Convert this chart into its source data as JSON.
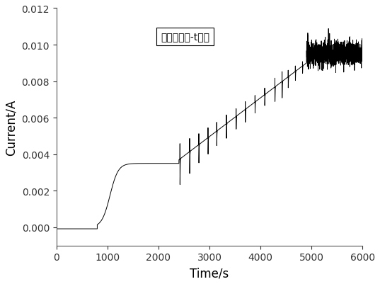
{
  "title": "",
  "xlabel": "Time/s",
  "ylabel": "Current/A",
  "xlim": [
    0,
    6000
  ],
  "ylim": [
    -0.001,
    0.012
  ],
  "xticks": [
    0,
    1000,
    2000,
    3000,
    4000,
    5000,
    6000
  ],
  "yticks": [
    0.0,
    0.002,
    0.004,
    0.006,
    0.008,
    0.01,
    0.012
  ],
  "legend_text": "苯胺恒聚合-t曲线",
  "line_color": "#000000",
  "background_color": "#ffffff",
  "legend_fontsize": 11,
  "axis_fontsize": 12,
  "spine_color": "#7f7f7f"
}
